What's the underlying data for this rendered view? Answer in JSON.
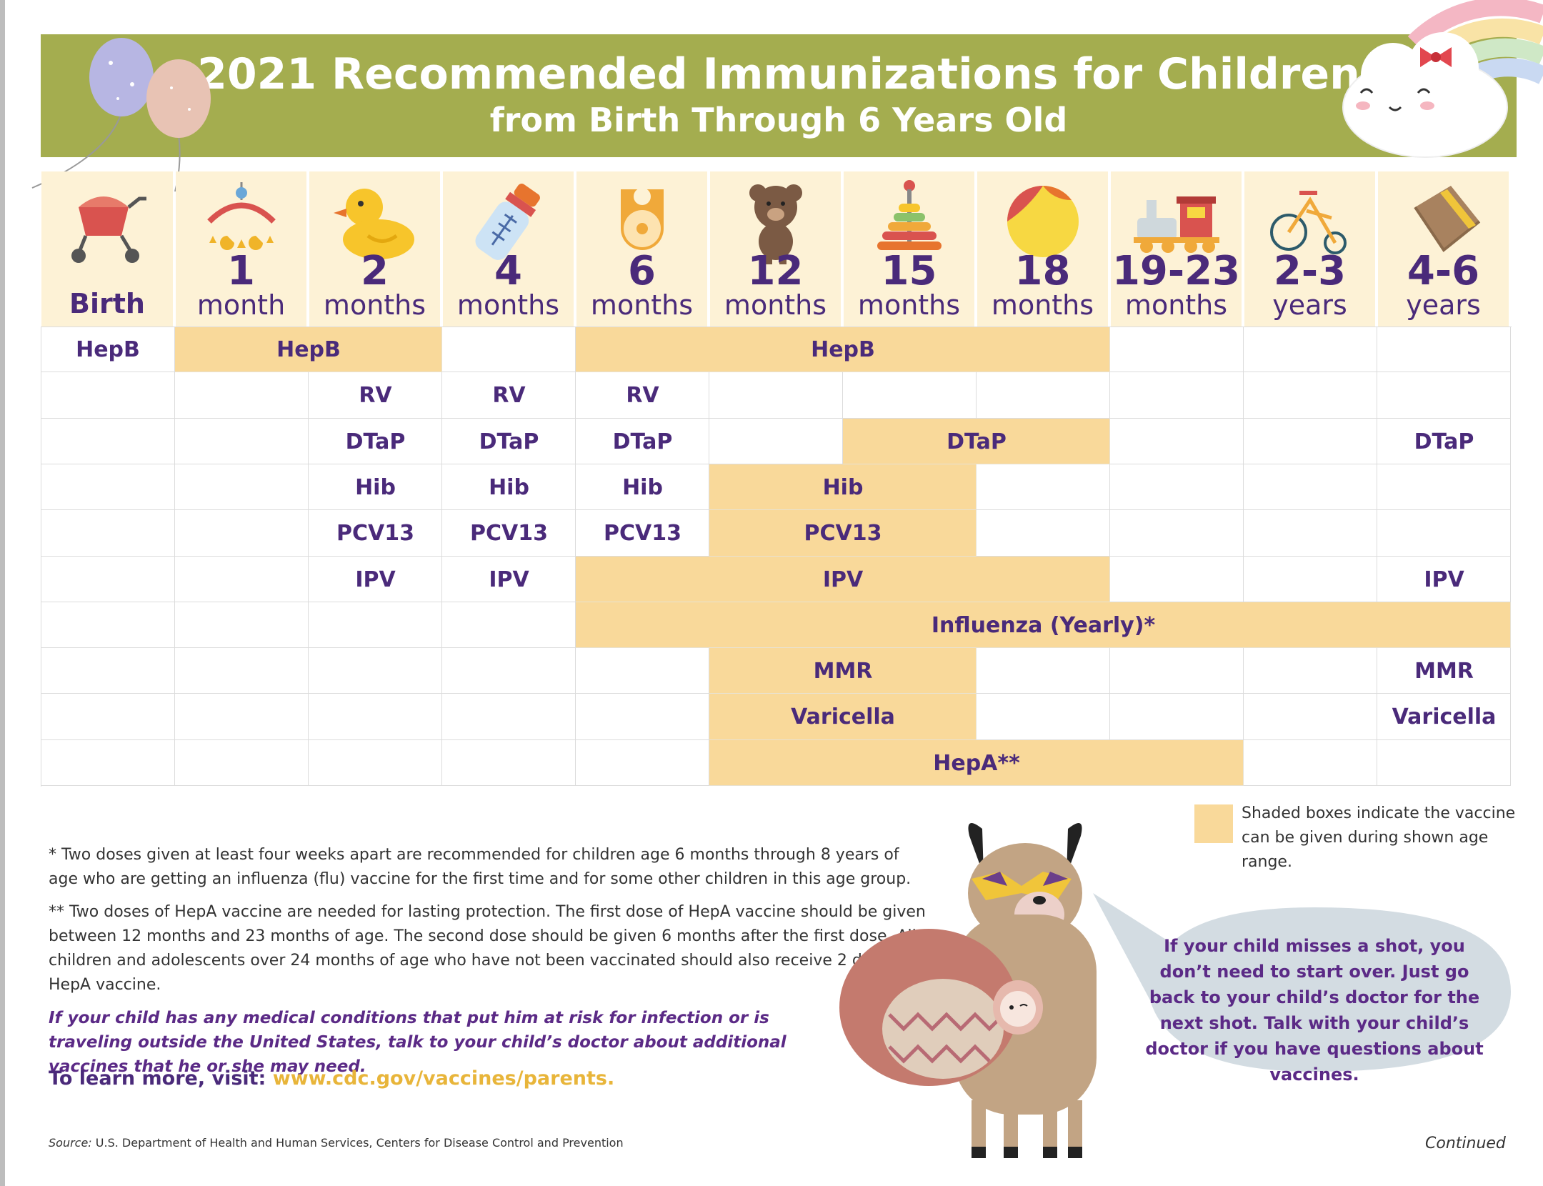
{
  "header": {
    "title": "2021 Recommended Immunizations for Children",
    "subtitle": "from Birth Through 6 Years Old"
  },
  "ages": [
    {
      "num": "",
      "unit": "Birth",
      "icon": "stroller-icon"
    },
    {
      "num": "1",
      "unit": "month",
      "icon": "crib-mobile-icon"
    },
    {
      "num": "2",
      "unit": "months",
      "icon": "rubber-duck-icon"
    },
    {
      "num": "4",
      "unit": "months",
      "icon": "baby-bottle-icon"
    },
    {
      "num": "6",
      "unit": "months",
      "icon": "bib-icon"
    },
    {
      "num": "12",
      "unit": "months",
      "icon": "teddy-bear-icon"
    },
    {
      "num": "15",
      "unit": "months",
      "icon": "stacking-rings-icon"
    },
    {
      "num": "18",
      "unit": "months",
      "icon": "beach-ball-icon"
    },
    {
      "num": "19-23",
      "unit": "months",
      "icon": "toy-train-icon"
    },
    {
      "num": "2-3",
      "unit": "years",
      "icon": "tricycle-icon"
    },
    {
      "num": "4-6",
      "unit": "years",
      "icon": "book-icon"
    }
  ],
  "schedule": [
    {
      "vaccine": "HepB",
      "doses": [
        {
          "label": "HepB",
          "from": 0,
          "to": 0,
          "shaded": false
        },
        {
          "label": "HepB",
          "from": 1,
          "to": 2,
          "shaded": true
        },
        {
          "label": "HepB",
          "from": 4,
          "to": 7,
          "shaded": true
        }
      ]
    },
    {
      "vaccine": "RV",
      "doses": [
        {
          "label": "RV",
          "from": 2,
          "to": 2,
          "shaded": false
        },
        {
          "label": "RV",
          "from": 3,
          "to": 3,
          "shaded": false
        },
        {
          "label": "RV",
          "from": 4,
          "to": 4,
          "shaded": false
        }
      ]
    },
    {
      "vaccine": "DTaP",
      "doses": [
        {
          "label": "DTaP",
          "from": 2,
          "to": 2,
          "shaded": false
        },
        {
          "label": "DTaP",
          "from": 3,
          "to": 3,
          "shaded": false
        },
        {
          "label": "DTaP",
          "from": 4,
          "to": 4,
          "shaded": false
        },
        {
          "label": "DTaP",
          "from": 6,
          "to": 7,
          "shaded": true
        },
        {
          "label": "DTaP",
          "from": 10,
          "to": 10,
          "shaded": false
        }
      ]
    },
    {
      "vaccine": "Hib",
      "doses": [
        {
          "label": "Hib",
          "from": 2,
          "to": 2,
          "shaded": false
        },
        {
          "label": "Hib",
          "from": 3,
          "to": 3,
          "shaded": false
        },
        {
          "label": "Hib",
          "from": 4,
          "to": 4,
          "shaded": false
        },
        {
          "label": "Hib",
          "from": 5,
          "to": 6,
          "shaded": true
        }
      ]
    },
    {
      "vaccine": "PCV13",
      "doses": [
        {
          "label": "PCV13",
          "from": 2,
          "to": 2,
          "shaded": false
        },
        {
          "label": "PCV13",
          "from": 3,
          "to": 3,
          "shaded": false
        },
        {
          "label": "PCV13",
          "from": 4,
          "to": 4,
          "shaded": false
        },
        {
          "label": "PCV13",
          "from": 5,
          "to": 6,
          "shaded": true
        }
      ]
    },
    {
      "vaccine": "IPV",
      "doses": [
        {
          "label": "IPV",
          "from": 2,
          "to": 2,
          "shaded": false
        },
        {
          "label": "IPV",
          "from": 3,
          "to": 3,
          "shaded": false
        },
        {
          "label": "IPV",
          "from": 4,
          "to": 7,
          "shaded": true
        },
        {
          "label": "IPV",
          "from": 10,
          "to": 10,
          "shaded": false
        }
      ]
    },
    {
      "vaccine": "Influenza",
      "doses": [
        {
          "label": "Influenza (Yearly)*",
          "from": 4,
          "to": 10,
          "shaded": true
        }
      ]
    },
    {
      "vaccine": "MMR",
      "doses": [
        {
          "label": "MMR",
          "from": 5,
          "to": 6,
          "shaded": true
        },
        {
          "label": "MMR",
          "from": 10,
          "to": 10,
          "shaded": false
        }
      ]
    },
    {
      "vaccine": "Varicella",
      "doses": [
        {
          "label": "Varicella",
          "from": 5,
          "to": 6,
          "shaded": true
        },
        {
          "label": "Varicella",
          "from": 10,
          "to": 10,
          "shaded": false
        }
      ]
    },
    {
      "vaccine": "HepA",
      "doses": [
        {
          "label": "HepA**",
          "from": 5,
          "to": 8,
          "shaded": true
        }
      ]
    }
  ],
  "legend": {
    "text": "Shaded boxes indicate the vaccine can be given during shown age range."
  },
  "footnotes": {
    "flu": "* Two doses given at least four weeks apart are recommended for children age 6 months through 8 years of age who are getting an influenza (flu) vaccine for the first time and for some other children in this age group.",
    "hepa": "** Two doses of HepA vaccine are needed for lasting protection. The first dose of HepA vaccine should be given between 12 months and 23 months of age. The second dose should be given 6 months after the first dose. All children and adolescents over 24 months of age who have not been vaccinated should also receive 2 doses of HepA vaccine."
  },
  "conditions_note": "If your child has any medical conditions that put him at risk for infection or is traveling outside the United States, talk to your child’s doctor about additional vaccines that he or she may need.",
  "learn_more": {
    "label": "To learn more, visit:",
    "link": "www.cdc.gov/vaccines/parents."
  },
  "bubble_text": "If your child misses a shot, you don’t need to start over. Just go back to your child’s doctor for the next shot. Talk with your child’s doctor if you have questions about vaccines.",
  "source": {
    "label": "Source:",
    "text": "U.S. Department of Health and Human Services, Centers for Disease Control and Prevention"
  },
  "continued": "Continued",
  "colors": {
    "banner": "#a4ad4f",
    "shade": "#f9d99a",
    "header_bg": "#fdf2d6",
    "text": "#4a2a7a",
    "link": "#e8b53a",
    "bubble": "#d3dce2"
  }
}
